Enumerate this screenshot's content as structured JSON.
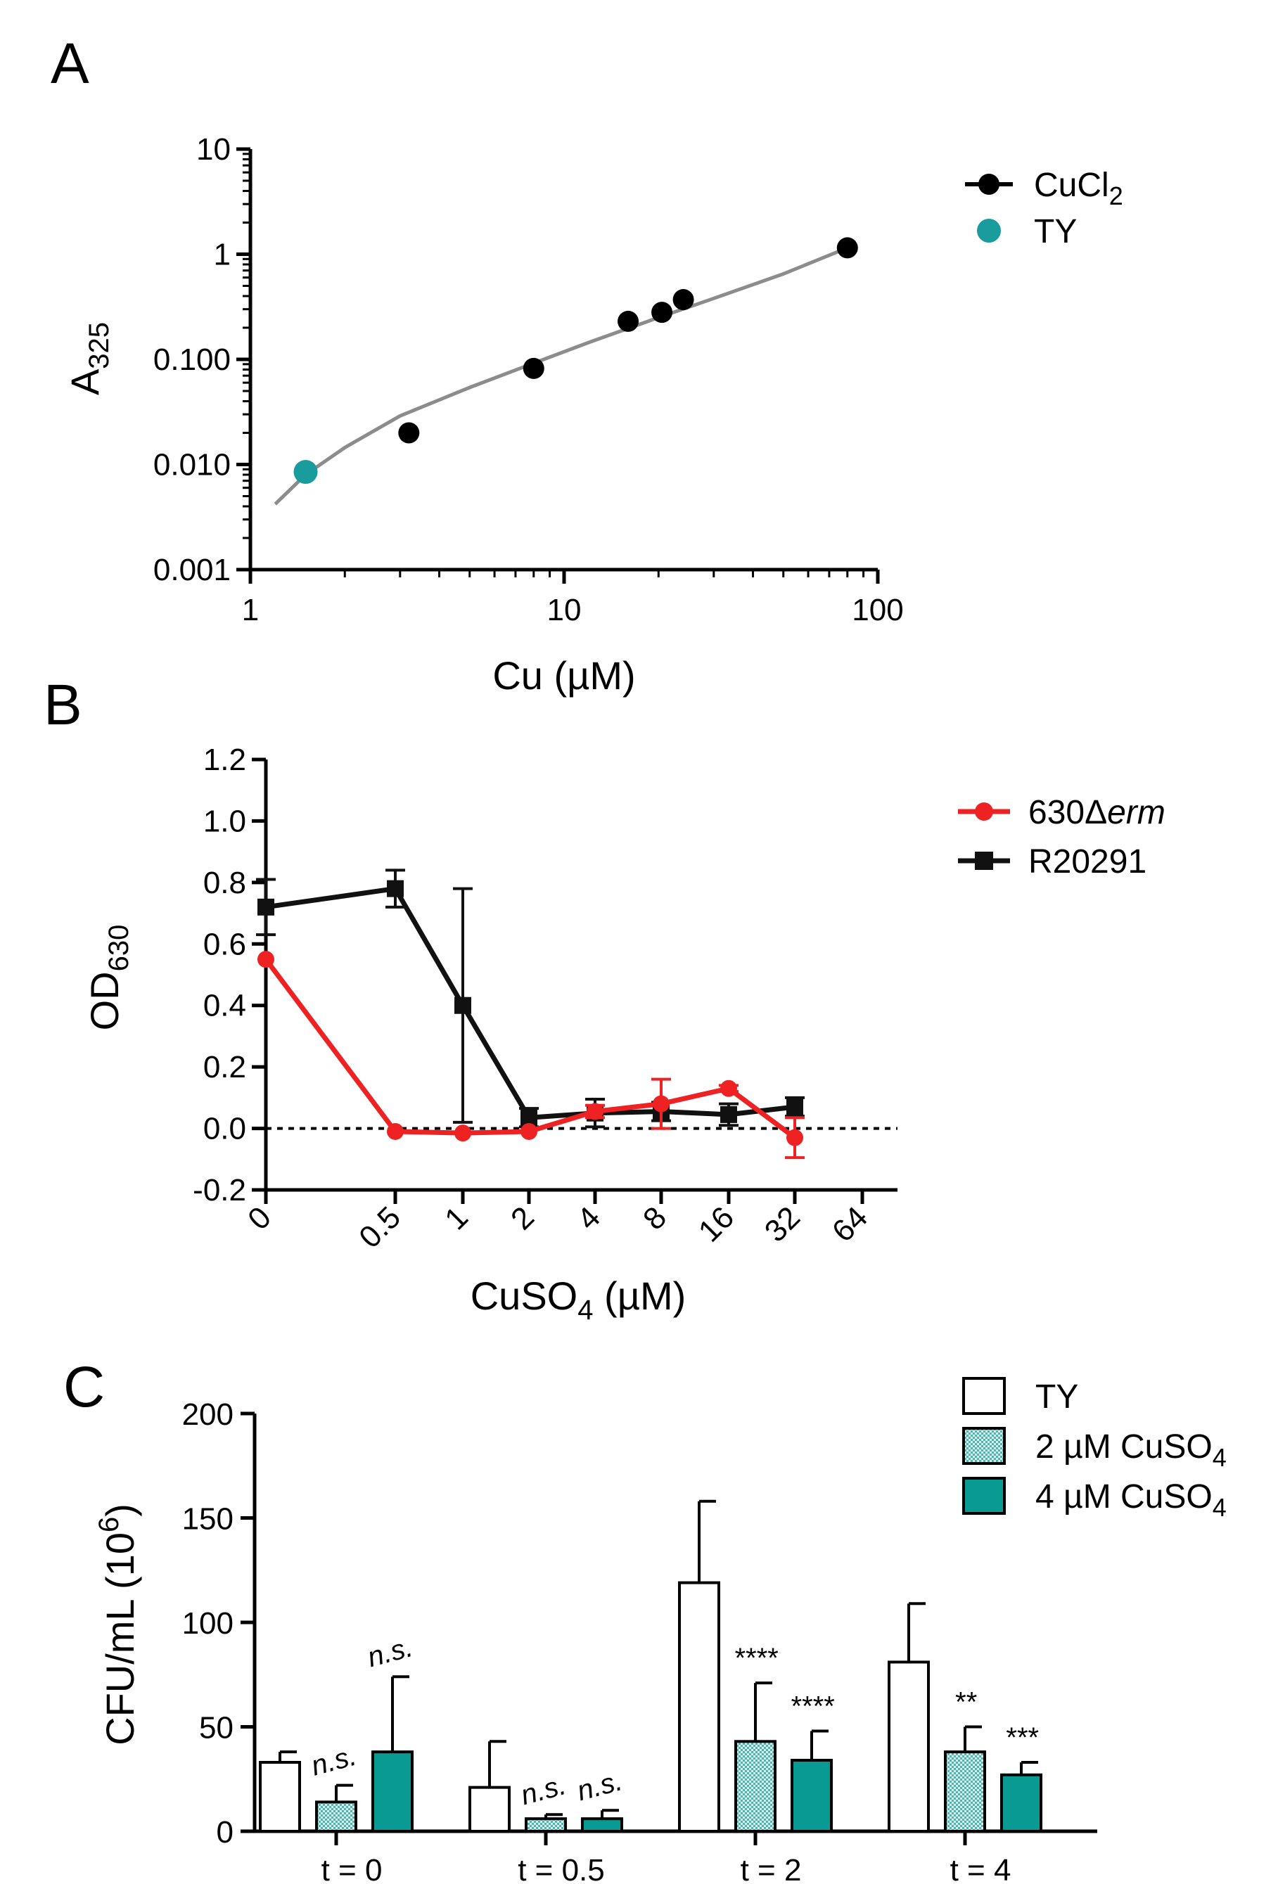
{
  "chart_data": [
    {
      "panel": "A",
      "type": "scatter",
      "xlabel": "Cu (µM)",
      "ylabel": "A325",
      "ylabel_main": "A",
      "ylabel_sub": "325",
      "xscale": "log",
      "yscale": "log",
      "xlim": [
        1,
        100
      ],
      "ylim": [
        0.001,
        10
      ],
      "xticks": [
        "1",
        "10",
        "100"
      ],
      "yticks": [
        "0.001",
        "0.010",
        "0.100",
        "1",
        "10"
      ],
      "grid": false,
      "legend_position": "top-right",
      "series": [
        {
          "name": "CuCl2",
          "legend_main": "CuCl",
          "legend_sub": "2",
          "color": "#000000",
          "marker": "circle",
          "points": [
            {
              "x": 3.2,
              "y": 0.02
            },
            {
              "x": 8,
              "y": 0.082
            },
            {
              "x": 16,
              "y": 0.23
            },
            {
              "x": 20.5,
              "y": 0.28
            },
            {
              "x": 24,
              "y": 0.37
            },
            {
              "x": 80,
              "y": 1.15
            }
          ]
        },
        {
          "name": "TY",
          "color": "#1a9c9c",
          "marker": "circle",
          "points": [
            {
              "x": 1.5,
              "y": 0.0085
            }
          ]
        }
      ],
      "fit_curve": {
        "color": "#8c8c8c",
        "points": [
          {
            "x": 1.2,
            "y": 0.0042
          },
          {
            "x": 1.5,
            "y": 0.008
          },
          {
            "x": 2,
            "y": 0.0145
          },
          {
            "x": 3,
            "y": 0.029
          },
          {
            "x": 5,
            "y": 0.054
          },
          {
            "x": 8,
            "y": 0.092
          },
          {
            "x": 12,
            "y": 0.145
          },
          {
            "x": 20,
            "y": 0.25
          },
          {
            "x": 30,
            "y": 0.38
          },
          {
            "x": 50,
            "y": 0.65
          },
          {
            "x": 80,
            "y": 1.15
          }
        ]
      }
    },
    {
      "panel": "B",
      "type": "line",
      "xlabel": "CuSO4 (µM)",
      "xlabel_main": "CuSO",
      "xlabel_sub": "4",
      "xlabel_after": " (µM)",
      "ylabel": "OD630",
      "ylabel_main": "OD",
      "ylabel_sub": "630",
      "categories": [
        "0",
        "0.5",
        "1",
        "2",
        "4",
        "8",
        "16",
        "32",
        "64"
      ],
      "ylim": [
        -0.2,
        1.2
      ],
      "yticks": [
        "-0.2",
        "0.0",
        "0.2",
        "0.4",
        "0.6",
        "0.8",
        "1.0",
        "1.2"
      ],
      "reference_line": {
        "y": 0,
        "style": "dotted"
      },
      "grid": false,
      "legend_position": "top-right",
      "series": [
        {
          "name": "630Δerm",
          "legend_main": "630Δ",
          "legend_italic": "erm",
          "color": "#ee2222",
          "marker": "circle",
          "points": [
            {
              "x": "0",
              "y": 0.55,
              "err": 0
            },
            {
              "x": "0.5",
              "y": -0.01,
              "err": 0
            },
            {
              "x": "1",
              "y": -0.015,
              "err": 0
            },
            {
              "x": "2",
              "y": -0.01,
              "err": 0
            },
            {
              "x": "4",
              "y": 0.055,
              "err": 0.02
            },
            {
              "x": "8",
              "y": 0.08,
              "err": 0.08
            },
            {
              "x": "16",
              "y": 0.13,
              "err": 0.01
            },
            {
              "x": "32",
              "y": -0.03,
              "err": 0.065
            }
          ]
        },
        {
          "name": "R20291",
          "color": "#111111",
          "marker": "square",
          "points": [
            {
              "x": "0",
              "y": 0.72,
              "err": 0.09
            },
            {
              "x": "0.5",
              "y": 0.78,
              "err": 0.06
            },
            {
              "x": "1",
              "y": 0.4,
              "err": 0.38
            },
            {
              "x": "2",
              "y": 0.035,
              "err": 0.03
            },
            {
              "x": "4",
              "y": 0.05,
              "err": 0.045
            },
            {
              "x": "8",
              "y": 0.055,
              "err": 0.03
            },
            {
              "x": "16",
              "y": 0.045,
              "err": 0.035
            },
            {
              "x": "32",
              "y": 0.07,
              "err": 0.03
            }
          ]
        }
      ]
    },
    {
      "panel": "C",
      "type": "bar",
      "ylabel": "CFU/mL (10^6)",
      "ylabel_main": "CFU/mL (10",
      "ylabel_sup": "6",
      "ylabel_after": ")",
      "categories": [
        "t = 0",
        "t = 0.5",
        "t = 2",
        "t = 4"
      ],
      "ylim": [
        0,
        200
      ],
      "yticks": [
        "0",
        "50",
        "100",
        "150",
        "200"
      ],
      "grid": false,
      "legend_position": "top-right",
      "series": [
        {
          "name": "TY",
          "fill": "#ffffff",
          "pattern": "none",
          "values": [
            33,
            21,
            119,
            81
          ],
          "errors": [
            5,
            22,
            39,
            28
          ],
          "sig": [
            "",
            "",
            "",
            ""
          ]
        },
        {
          "name": "2 µM CuSO4",
          "legend_main": "2 µM CuSO",
          "legend_sub": "4",
          "fill": "#9fd6d2",
          "pattern": "checker",
          "values": [
            14,
            6,
            43,
            38
          ],
          "errors": [
            8,
            2,
            28,
            12
          ],
          "sig": [
            "n.s.",
            "n.s.",
            "****",
            "**"
          ]
        },
        {
          "name": "4 µM CuSO4",
          "legend_main": "4 µM CuSO",
          "legend_sub": "4",
          "fill": "#0a9a94",
          "pattern": "none",
          "values": [
            38,
            6,
            34,
            27
          ],
          "errors": [
            36,
            4,
            14,
            6
          ],
          "sig": [
            "n.s.",
            "n.s.",
            "****",
            "***"
          ]
        }
      ]
    }
  ],
  "panel_labels": [
    "A",
    "B",
    "C"
  ]
}
